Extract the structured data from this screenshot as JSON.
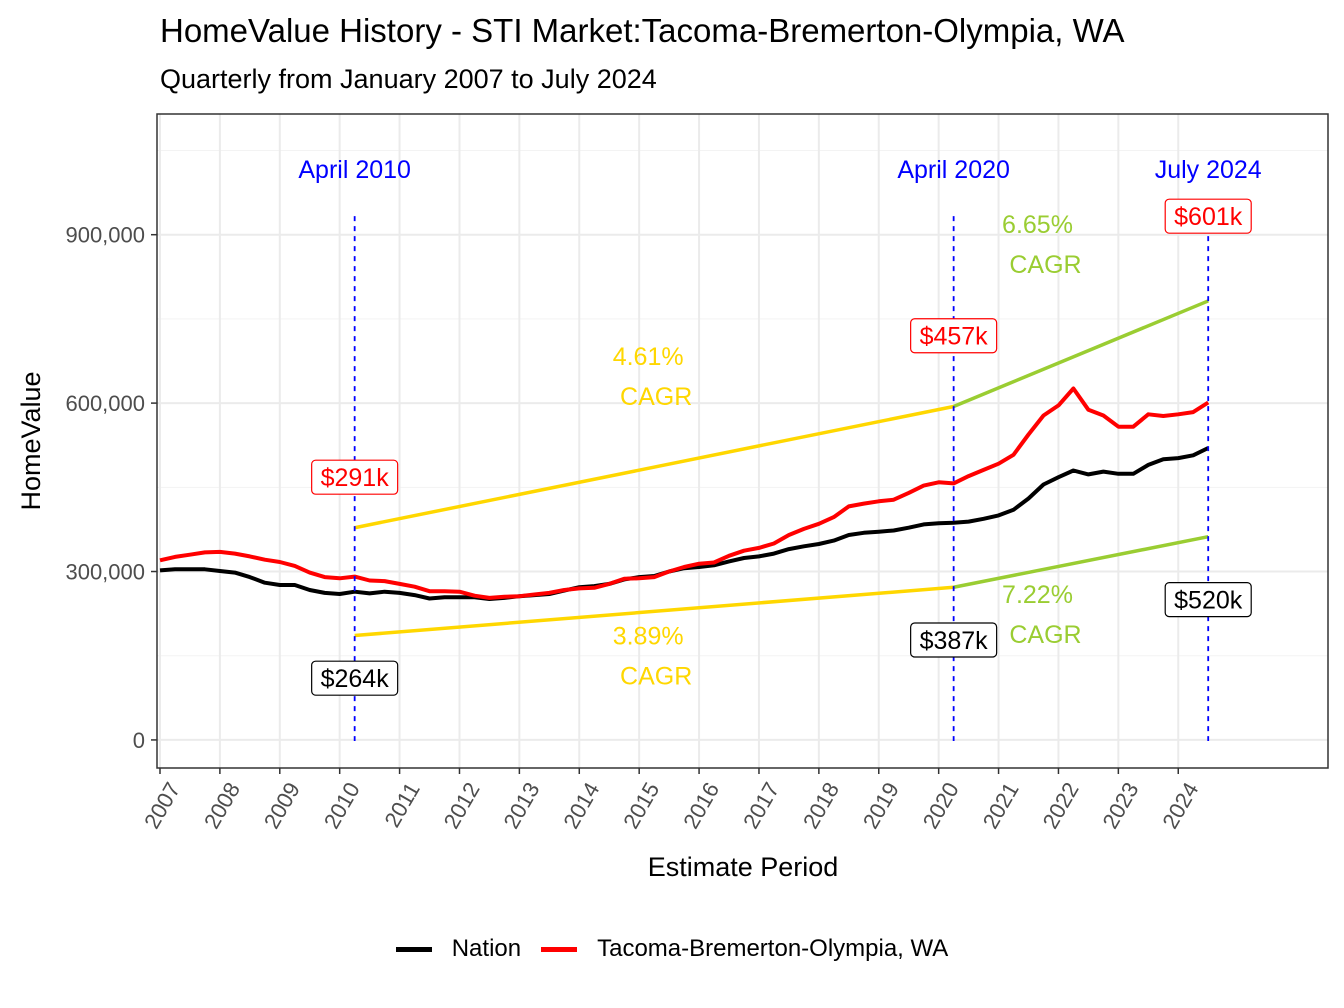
{
  "chart_data": {
    "type": "line",
    "title": "HomeValue History - STI Market:Tacoma-Bremerton-Olympia, WA",
    "subtitle": "Quarterly from January 2007 to July 2024",
    "xlabel": "Estimate Period",
    "ylabel": "HomeValue",
    "xlim": [
      2006.95,
      2026.5
    ],
    "ylim": [
      -50000,
      1115000
    ],
    "y_ticks": [
      0,
      300000,
      600000,
      900000
    ],
    "y_tick_labels": [
      "0",
      "300,000",
      "600,000",
      "900,000"
    ],
    "x_tick_labels": [
      "2007",
      "2008",
      "2009",
      "2010",
      "2011",
      "2012",
      "2013",
      "2014",
      "2015",
      "2016",
      "2017",
      "2018",
      "2019",
      "2020",
      "2021",
      "2022",
      "2023",
      "2024"
    ],
    "grid": true,
    "legend_position": "bottom",
    "colors": {
      "nation": "#000000",
      "market": "#ff0000",
      "cagr_pre": "#ffd700",
      "cagr_post": "#9acd32",
      "marker": "#0000ff"
    },
    "series": [
      {
        "name": "Nation",
        "color": "#000000",
        "x": [
          2007,
          2007.25,
          2007.5,
          2007.75,
          2008,
          2008.25,
          2008.5,
          2008.75,
          2009,
          2009.25,
          2009.5,
          2009.75,
          2010,
          2010.25,
          2010.5,
          2010.75,
          2011,
          2011.25,
          2011.5,
          2011.75,
          2012,
          2012.25,
          2012.5,
          2012.75,
          2013,
          2013.25,
          2013.5,
          2013.75,
          2014,
          2014.25,
          2014.5,
          2014.75,
          2015,
          2015.25,
          2015.5,
          2015.75,
          2016,
          2016.25,
          2016.5,
          2016.75,
          2017,
          2017.25,
          2017.5,
          2017.75,
          2018,
          2018.25,
          2018.5,
          2018.75,
          2019,
          2019.25,
          2019.5,
          2019.75,
          2020,
          2020.25,
          2020.5,
          2020.75,
          2021,
          2021.25,
          2021.5,
          2021.75,
          2022,
          2022.25,
          2022.5,
          2022.75,
          2023,
          2023.25,
          2023.5,
          2023.75,
          2024,
          2024.25,
          2024.5
        ],
        "values": [
          302000,
          304000,
          304000,
          304000,
          301000,
          298000,
          290000,
          280000,
          276000,
          276000,
          267000,
          262000,
          260000,
          264000,
          261000,
          264000,
          262000,
          258000,
          252000,
          254000,
          254000,
          254000,
          251000,
          253000,
          256000,
          258000,
          260000,
          266000,
          272000,
          274000,
          278000,
          286000,
          290000,
          292000,
          300000,
          306000,
          308000,
          311000,
          318000,
          324000,
          327000,
          332000,
          340000,
          345000,
          349000,
          355000,
          365000,
          369000,
          371000,
          373000,
          378000,
          384000,
          386000,
          387000,
          389000,
          394000,
          400000,
          410000,
          430000,
          455000,
          468000,
          480000,
          473000,
          478000,
          474000,
          474000,
          490000,
          500000,
          502000,
          507000,
          520000
        ]
      },
      {
        "name": "Tacoma-Bremerton-Olympia, WA",
        "color": "#ff0000",
        "x": [
          2007,
          2007.25,
          2007.5,
          2007.75,
          2008,
          2008.25,
          2008.5,
          2008.75,
          2009,
          2009.25,
          2009.5,
          2009.75,
          2010,
          2010.25,
          2010.5,
          2010.75,
          2011,
          2011.25,
          2011.5,
          2011.75,
          2012,
          2012.25,
          2012.5,
          2012.75,
          2013,
          2013.25,
          2013.5,
          2013.75,
          2014,
          2014.25,
          2014.5,
          2014.75,
          2015,
          2015.25,
          2015.5,
          2015.75,
          2016,
          2016.25,
          2016.5,
          2016.75,
          2017,
          2017.25,
          2017.5,
          2017.75,
          2018,
          2018.25,
          2018.5,
          2018.75,
          2019,
          2019.25,
          2019.5,
          2019.75,
          2020,
          2020.25,
          2020.5,
          2020.75,
          2021,
          2021.25,
          2021.5,
          2021.75,
          2022,
          2022.25,
          2022.5,
          2022.75,
          2023,
          2023.25,
          2023.5,
          2023.75,
          2024,
          2024.25,
          2024.5
        ],
        "values": [
          320000,
          326000,
          330000,
          334000,
          335000,
          332000,
          327000,
          321000,
          317000,
          310000,
          298000,
          290000,
          288000,
          291000,
          284000,
          283000,
          278000,
          273000,
          265000,
          265000,
          264000,
          257000,
          253000,
          255000,
          256000,
          259000,
          262000,
          267000,
          270000,
          271000,
          278000,
          287000,
          288000,
          290000,
          300000,
          308000,
          314000,
          316000,
          328000,
          337000,
          342000,
          350000,
          365000,
          376000,
          385000,
          397000,
          416000,
          421000,
          425000,
          428000,
          440000,
          453000,
          459000,
          457000,
          470000,
          481000,
          492000,
          508000,
          544000,
          578000,
          596000,
          626000,
          588000,
          578000,
          558000,
          558000,
          580000,
          577000,
          580000,
          584000,
          601000
        ]
      }
    ],
    "markers": [
      {
        "x": 2010.25,
        "label": "April 2010"
      },
      {
        "x": 2020.25,
        "label": "April 2020"
      },
      {
        "x": 2024.5,
        "label": "July 2024"
      }
    ],
    "trend_lines": [
      {
        "x": [
          2010.25,
          2020.25
        ],
        "y": [
          378000,
          594000
        ],
        "color": "#ffd700"
      },
      {
        "x": [
          2020.25,
          2024.5
        ],
        "y": [
          594000,
          782000
        ],
        "color": "#9acd32"
      },
      {
        "x": [
          2010.25,
          2020.25
        ],
        "y": [
          186000,
          272000
        ],
        "color": "#ffd700"
      },
      {
        "x": [
          2020.25,
          2024.5
        ],
        "y": [
          272000,
          362000
        ],
        "color": "#9acd32"
      }
    ],
    "value_labels": [
      {
        "text": "$291k",
        "x": 2010.25,
        "y": 468000,
        "color": "#ff0000"
      },
      {
        "text": "$264k",
        "x": 2010.25,
        "y": 110000,
        "color": "#000000"
      },
      {
        "text": "$457k",
        "x": 2020.25,
        "y": 720000,
        "color": "#ff0000"
      },
      {
        "text": "$387k",
        "x": 2020.25,
        "y": 178000,
        "color": "#000000"
      },
      {
        "text": "$601k",
        "x": 2024.5,
        "y": 933000,
        "color": "#ff0000"
      },
      {
        "text": "$520k",
        "x": 2024.5,
        "y": 250000,
        "color": "#000000"
      }
    ],
    "cagr_labels": [
      {
        "pct": "4.61%",
        "word": "CAGR",
        "x": 2015.15,
        "y": 650000,
        "color": "#ffd700"
      },
      {
        "pct": "3.89%",
        "word": "CAGR",
        "x": 2015.15,
        "y": 152000,
        "color": "#ffd700"
      },
      {
        "pct": "6.65%",
        "word": "CAGR",
        "x": 2021.65,
        "y": 885000,
        "color": "#9acd32"
      },
      {
        "pct": "7.22%",
        "word": "CAGR",
        "x": 2021.65,
        "y": 226000,
        "color": "#9acd32"
      }
    ]
  }
}
